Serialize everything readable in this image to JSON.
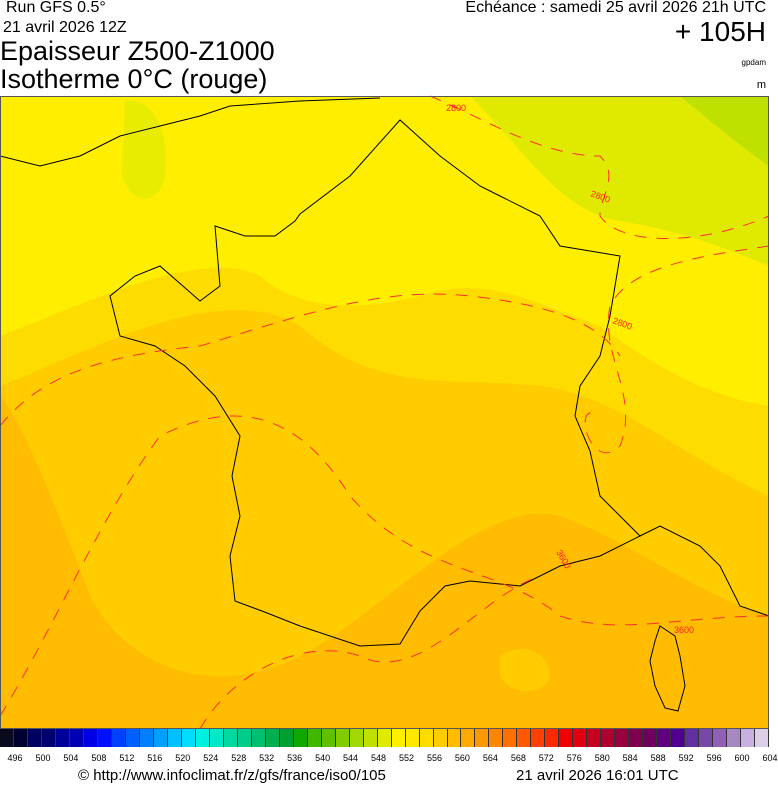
{
  "header": {
    "run": "Run GFS 0.5°",
    "run_date": "21 avril 2026 12Z",
    "title_line1": "Epaisseur Z500-Z1000",
    "title_line2": "Isotherme 0°C (rouge)",
    "echeance": "Echéance : samedi 25 avril 2026 21h UTC",
    "lead_time": "+ 105H",
    "unit_thickness": "gpdam",
    "unit_isotherm": "m"
  },
  "map": {
    "isotherm_labels": [
      "2800",
      "2800",
      "2800",
      "3600",
      "3600"
    ],
    "isotherm_color": "#ff2020",
    "fill_colors": {
      "north": "#fff000",
      "northeast": "#e0ea00",
      "far_northeast": "#c0e000",
      "center": "#ffdc00",
      "south": "#ffcc00",
      "southwest": "#ffbc00"
    }
  },
  "colorbar": {
    "labels": [
      "496",
      "500",
      "504",
      "508",
      "512",
      "516",
      "520",
      "524",
      "528",
      "532",
      "536",
      "540",
      "544",
      "548",
      "552",
      "556",
      "560",
      "564",
      "568",
      "572",
      "576",
      "580",
      "584",
      "588",
      "592",
      "596",
      "600",
      "604"
    ],
    "colors": [
      "#0a0a1e",
      "#000030",
      "#000060",
      "#000070",
      "#00009a",
      "#0000b4",
      "#0000e6",
      "#0010ff",
      "#0040ff",
      "#0060ff",
      "#0080ff",
      "#00a0ff",
      "#00c0ff",
      "#00dcff",
      "#00f0e0",
      "#00e8c8",
      "#00d8a0",
      "#00cc88",
      "#00c070",
      "#00b050",
      "#00a030",
      "#10a800",
      "#40b800",
      "#60c000",
      "#80cc00",
      "#a0d800",
      "#c0e000",
      "#e0ea00",
      "#fff000",
      "#ffe800",
      "#ffdc00",
      "#ffcc00",
      "#ffbc00",
      "#ffaa00",
      "#ff9800",
      "#ff8400",
      "#ff7000",
      "#ff5800",
      "#ff4000",
      "#ff2800",
      "#f00000",
      "#e00010",
      "#c80020",
      "#b00030",
      "#980040",
      "#800050",
      "#700060",
      "#600080",
      "#500090",
      "#6030a0",
      "#7848a8",
      "#9060b8",
      "#a888c0",
      "#c8b0e0",
      "#dcd0e8"
    ]
  },
  "footer": {
    "source": "© http://www.infoclimat.fr/z/gfs/france/iso0/105",
    "generated": "21 avril 2026 16:01 UTC"
  }
}
